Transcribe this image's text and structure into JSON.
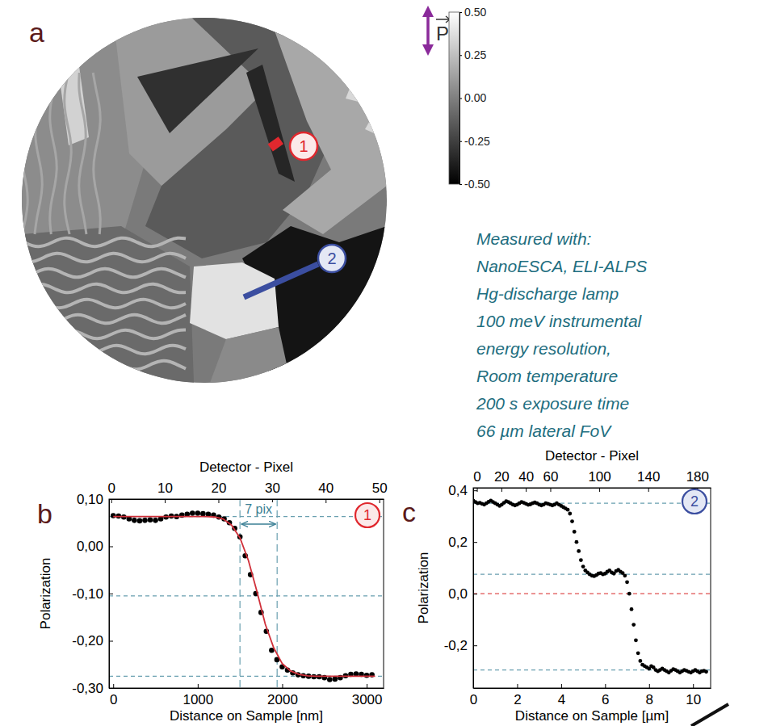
{
  "panel_a": {
    "panel_label": "a",
    "polarization_label": "P",
    "colorbar": {
      "range": [
        -0.5,
        0.5
      ],
      "ticks": [
        {
          "value": 0.5,
          "label": "0.50"
        },
        {
          "value": 0.25,
          "label": "0.25"
        },
        {
          "value": 0,
          "label": "0.00"
        },
        {
          "value": -0.25,
          "label": "-0.25"
        },
        {
          "value": -0.5,
          "label": "-0.50"
        }
      ]
    },
    "markers": [
      {
        "label": "1",
        "color": "#e0282e"
      },
      {
        "label": "2",
        "color": "#3b4ea0"
      }
    ],
    "info": [
      "Measured with:",
      "NanoESCA, ELI-ALPS",
      "Hg-discharge lamp",
      "100 meV instrumental",
      "energy resolution,",
      "Room temperature",
      "200 s exposure time",
      "66 µm lateral FoV"
    ]
  },
  "chart_data": [
    {
      "type": "scatter",
      "panel_label": "b",
      "marker_label": "1",
      "marker_color": "#e0282e",
      "xlabel": "Distance on Sample [nm]",
      "ylabel": "Polarization",
      "x2label": "Detector - Pixel",
      "xlim": [
        -50,
        3200
      ],
      "xticks": [
        0,
        1000,
        2000,
        3000
      ],
      "x2lim": [
        -0.4,
        50.8
      ],
      "x2ticks": [
        0,
        10,
        20,
        30,
        40,
        50
      ],
      "ylim": [
        -0.3,
        0.1
      ],
      "yticks": [
        {
          "value": 0.1,
          "label": "0,10"
        },
        {
          "value": 0,
          "label": "0,00"
        },
        {
          "value": -0.1,
          "label": "-0,10"
        },
        {
          "value": -0.2,
          "label": "-0,20"
        },
        {
          "value": -0.3,
          "label": "-0,30"
        }
      ],
      "hlines": [
        {
          "value": 0.063,
          "color": "#6aa0b0",
          "line_style": "dashed"
        },
        {
          "value": -0.105,
          "color": "#6aa0b0",
          "line_style": "dashed"
        },
        {
          "value": -0.275,
          "color": "#6aa0b0",
          "line_style": "dashed"
        }
      ],
      "vlines": [
        1500,
        1940
      ],
      "span_label": "7 pix",
      "series": [
        {
          "type": "scatter",
          "marker": "circle",
          "color": "#000000",
          "x": [
            0,
            62.5,
            125,
            187.5,
            250,
            312.5,
            375,
            437.5,
            500,
            562.5,
            625,
            687.5,
            750,
            812.5,
            875,
            937.5,
            1000,
            1062.5,
            1125,
            1187.5,
            1250,
            1312.5,
            1375,
            1437.5,
            1500,
            1562.5,
            1625,
            1687.5,
            1750,
            1812.5,
            1875,
            1937.5,
            2000,
            2062.5,
            2125,
            2187.5,
            2250,
            2312.5,
            2375,
            2437.5,
            2500,
            2562.5,
            2625,
            2687.5,
            2750,
            2812.5,
            2875,
            2937.5,
            3000,
            3062.5
          ],
          "values": [
            0.065,
            0.064,
            0.062,
            0.058,
            0.055,
            0.054,
            0.055,
            0.056,
            0.055,
            0.058,
            0.062,
            0.064,
            0.063,
            0.066,
            0.068,
            0.07,
            0.07,
            0.069,
            0.068,
            0.066,
            0.062,
            0.058,
            0.05,
            0.038,
            0.02,
            -0.02,
            -0.06,
            -0.1,
            -0.14,
            -0.18,
            -0.22,
            -0.24,
            -0.255,
            -0.262,
            -0.268,
            -0.272,
            -0.274,
            -0.275,
            -0.276,
            -0.276,
            -0.278,
            -0.282,
            -0.281,
            -0.278,
            -0.274,
            -0.271,
            -0.27,
            -0.271,
            -0.273,
            -0.272
          ]
        },
        {
          "type": "line",
          "line_style": "solid",
          "color": "#d0303a",
          "x": [
            0,
            100,
            200,
            300,
            400,
            500,
            600,
            700,
            800,
            900,
            1000,
            1100,
            1200,
            1300,
            1400,
            1500,
            1600,
            1700,
            1800,
            1900,
            2000,
            2100,
            2200,
            2300,
            2400,
            2500,
            2600,
            2700,
            2800,
            2900,
            3000,
            3100
          ],
          "values": [
            0.063,
            0.063,
            0.063,
            0.063,
            0.063,
            0.063,
            0.063,
            0.063,
            0.063,
            0.063,
            0.063,
            0.063,
            0.062,
            0.058,
            0.045,
            0.018,
            -0.03,
            -0.095,
            -0.165,
            -0.215,
            -0.248,
            -0.264,
            -0.271,
            -0.274,
            -0.275,
            -0.275,
            -0.275,
            -0.275,
            -0.275,
            -0.275,
            -0.275,
            -0.275
          ]
        }
      ]
    },
    {
      "type": "scatter",
      "panel_label": "c",
      "marker_label": "2",
      "marker_color": "#3b4ea0",
      "xlabel": "Distance on Sample [µm]",
      "ylabel": "Polarization",
      "x2label": "Detector - Pixel",
      "xlim": [
        0,
        10.8
      ],
      "xticks": [
        0,
        2,
        4,
        6,
        8,
        10
      ],
      "x2lim": [
        -3,
        191
      ],
      "x2ticks": [
        0,
        20,
        40,
        60,
        100,
        140,
        180
      ],
      "ylim": [
        -0.365,
        0.41
      ],
      "yticks": [
        {
          "value": 0.4,
          "label": "0,4"
        },
        {
          "value": 0.2,
          "label": "0,2"
        },
        {
          "value": 0,
          "label": "0,0"
        },
        {
          "value": -0.2,
          "label": "-0,2"
        }
      ],
      "hlines": [
        {
          "value": 0.35,
          "color": "#6aa0b0",
          "line_style": "dashed"
        },
        {
          "value": 0.075,
          "color": "#6aa0b0",
          "line_style": "dashed"
        },
        {
          "value": -0.295,
          "color": "#6aa0b0",
          "line_style": "dashed"
        },
        {
          "value": 0,
          "color": "#e05050",
          "line_style": "dashed"
        }
      ],
      "series": [
        {
          "type": "scatter",
          "marker": "circle",
          "color": "#000000",
          "x": [
            0,
            0.1,
            0.2,
            0.3,
            0.4,
            0.5,
            0.6,
            0.7,
            0.8,
            0.9,
            1,
            1.1,
            1.2,
            1.3,
            1.4,
            1.5,
            1.6,
            1.7,
            1.8,
            1.9,
            2,
            2.1,
            2.2,
            2.3,
            2.4,
            2.5,
            2.6,
            2.7,
            2.8,
            2.9,
            3,
            3.1,
            3.2,
            3.3,
            3.4,
            3.5,
            3.6,
            3.7,
            3.8,
            3.9,
            4,
            4.1,
            4.2,
            4.3,
            4.4,
            4.5,
            4.6,
            4.7,
            4.8,
            4.9,
            5,
            5.1,
            5.2,
            5.3,
            5.4,
            5.5,
            5.6,
            5.7,
            5.8,
            5.9,
            6,
            6.1,
            6.2,
            6.3,
            6.4,
            6.5,
            6.6,
            6.7,
            6.8,
            6.9,
            7,
            7.1,
            7.2,
            7.3,
            7.4,
            7.5,
            7.6,
            7.7,
            7.8,
            7.9,
            8,
            8.1,
            8.2,
            8.3,
            8.4,
            8.5,
            8.6,
            8.7,
            8.8,
            8.9,
            9,
            9.1,
            9.2,
            9.3,
            9.4,
            9.5,
            9.6,
            9.7,
            9.8,
            9.9,
            10,
            10.1,
            10.2,
            10.3,
            10.4,
            10.5,
            10.6
          ],
          "values": [
            0.36,
            0.355,
            0.35,
            0.352,
            0.348,
            0.345,
            0.35,
            0.356,
            0.36,
            0.355,
            0.35,
            0.345,
            0.34,
            0.345,
            0.352,
            0.358,
            0.355,
            0.35,
            0.345,
            0.342,
            0.345,
            0.35,
            0.355,
            0.352,
            0.348,
            0.344,
            0.346,
            0.35,
            0.353,
            0.35,
            0.345,
            0.342,
            0.345,
            0.35,
            0.348,
            0.345,
            0.342,
            0.345,
            0.35,
            0.345,
            0.34,
            0.335,
            0.33,
            0.325,
            0.31,
            0.28,
            0.24,
            0.2,
            0.165,
            0.13,
            0.105,
            0.09,
            0.082,
            0.075,
            0.07,
            0.068,
            0.072,
            0.078,
            0.08,
            0.075,
            0.078,
            0.085,
            0.09,
            0.082,
            0.078,
            0.088,
            0.092,
            0.085,
            0.08,
            0.07,
            0.045,
            0,
            -0.06,
            -0.12,
            -0.18,
            -0.23,
            -0.26,
            -0.275,
            -0.28,
            -0.285,
            -0.29,
            -0.28,
            -0.285,
            -0.295,
            -0.3,
            -0.295,
            -0.29,
            -0.295,
            -0.3,
            -0.305,
            -0.298,
            -0.292,
            -0.295,
            -0.3,
            -0.305,
            -0.3,
            -0.295,
            -0.298,
            -0.302,
            -0.305,
            -0.3,
            -0.295,
            -0.3,
            -0.305,
            -0.3,
            -0.298,
            -0.302
          ]
        }
      ]
    }
  ]
}
